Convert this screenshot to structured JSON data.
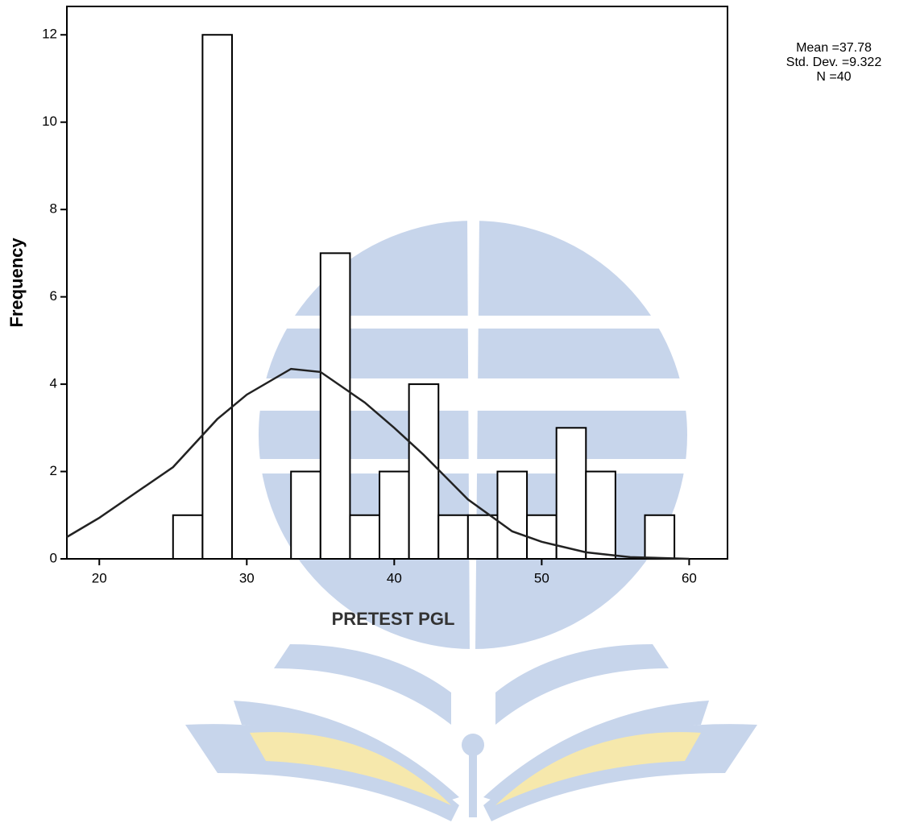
{
  "chart_data": {
    "type": "histogram",
    "xlabel": "PRETEST PGL",
    "ylabel": "Frequency",
    "bins": [
      25,
      27,
      29,
      31,
      33,
      35,
      37,
      39,
      41,
      43,
      45,
      47,
      49,
      51,
      53,
      55,
      57,
      59
    ],
    "values": [
      1,
      12,
      0,
      0,
      2,
      7,
      1,
      2,
      4,
      1,
      1,
      2,
      1,
      3,
      2,
      0,
      1
    ],
    "color": "#ffffff",
    "edgecolor": "#000000",
    "curve": {
      "x": [
        17.8,
        20,
        25,
        28,
        30,
        33,
        35,
        38,
        40,
        42,
        45,
        48,
        50,
        53,
        56,
        60
      ],
      "y": [
        0.5,
        0.94,
        2.1,
        3.2,
        3.76,
        4.35,
        4.28,
        3.58,
        3.0,
        2.38,
        1.36,
        0.63,
        0.39,
        0.15,
        0.04,
        0
      ]
    },
    "xlim": [
      17.8,
      62.6
    ],
    "ylim": [
      0,
      12.65
    ],
    "xticks": [
      20,
      30,
      40,
      50,
      60
    ],
    "yticks": [
      0,
      2,
      4,
      6,
      8,
      10,
      12
    ],
    "stats": [
      "Mean =37.78",
      "Std. Dev. =9.322",
      "N =40"
    ]
  }
}
